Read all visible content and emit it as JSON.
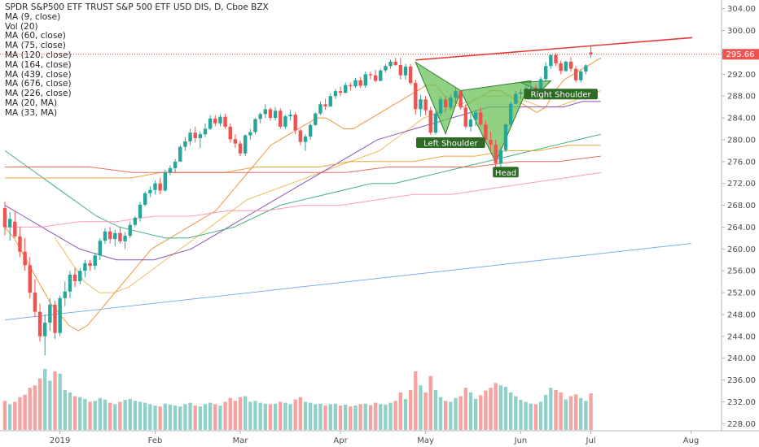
{
  "chart_data": {
    "type": "candlestick",
    "title": "SPDR S&P500 ETF TRUST S&P 500 ETF USD DIS, D, Cboe BZX",
    "legend": [
      {
        "label": "MA (9, close)"
      },
      {
        "label": "Vol (20)"
      },
      {
        "label": "MA (60, close)"
      },
      {
        "label": "MA (75, close)"
      },
      {
        "label": "MA (120, close)"
      },
      {
        "label": "MA (164, close)"
      },
      {
        "label": "MA (439, close)"
      },
      {
        "label": "MA (676, close)"
      },
      {
        "label": "MA (226, close)"
      },
      {
        "label": "MA (20, MA)"
      },
      {
        "label": "MA (33, MA)"
      }
    ],
    "y_ticks": [
      "304.00",
      "300.00",
      "296.00",
      "292.00",
      "288.00",
      "284.00",
      "280.00",
      "276.00",
      "272.00",
      "268.00",
      "264.00",
      "260.00",
      "256.00",
      "252.00",
      "248.00",
      "244.00",
      "240.00",
      "236.00",
      "232.00",
      "228.00"
    ],
    "x_ticks": [
      "2019",
      "Feb",
      "Mar",
      "Apr",
      "May",
      "Jun",
      "Jul",
      "Aug"
    ],
    "ylim": [
      227,
      305
    ],
    "last_price": "295.66",
    "colors": {
      "up": "#26a69a",
      "down": "#ef5350",
      "vol_up": "#8fd1c9",
      "vol_down": "#f5a3a1",
      "trendline": "#e53935",
      "pattern_fill": "#6cc25a",
      "pattern_stroke": "#2e7d32",
      "label_bg": "#2e6b24"
    },
    "candles": [
      [
        267.5,
        268.7,
        262.5,
        264.0,
        62
      ],
      [
        264.0,
        266.8,
        261.5,
        265.5,
        55
      ],
      [
        265.0,
        267.0,
        262.0,
        262.3,
        60
      ],
      [
        262.3,
        264.0,
        258.5,
        259.5,
        70
      ],
      [
        259.5,
        262.0,
        256.0,
        257.0,
        75
      ],
      [
        257.0,
        258.5,
        251.0,
        252.0,
        90
      ],
      [
        252.0,
        254.5,
        247.5,
        248.5,
        95
      ],
      [
        248.5,
        250.0,
        243.0,
        244.0,
        110
      ],
      [
        244.0,
        248.0,
        240.5,
        246.5,
        130
      ],
      [
        246.5,
        251.0,
        245.0,
        249.8,
        105
      ],
      [
        249.8,
        250.5,
        243.5,
        244.6,
        125
      ],
      [
        244.6,
        251.5,
        244.0,
        251.0,
        120
      ],
      [
        251.0,
        254.0,
        249.5,
        252.2,
        85
      ],
      [
        252.2,
        256.0,
        251.0,
        255.3,
        80
      ],
      [
        255.3,
        256.5,
        253.0,
        254.1,
        72
      ],
      [
        254.1,
        256.5,
        253.5,
        256.0,
        70
      ],
      [
        256.0,
        258.0,
        254.8,
        257.4,
        66
      ],
      [
        257.4,
        258.0,
        256.0,
        256.9,
        60
      ],
      [
        256.9,
        259.2,
        256.2,
        258.8,
        62
      ],
      [
        258.8,
        262.0,
        258.0,
        261.5,
        68
      ],
      [
        261.5,
        263.8,
        260.9,
        263.2,
        65
      ],
      [
        263.2,
        264.0,
        261.0,
        261.8,
        58
      ],
      [
        261.8,
        263.5,
        260.5,
        262.9,
        55
      ],
      [
        262.9,
        264.0,
        261.0,
        261.4,
        60
      ],
      [
        261.4,
        263.0,
        260.0,
        262.4,
        64
      ],
      [
        262.4,
        265.0,
        262.0,
        264.4,
        66
      ],
      [
        264.4,
        266.0,
        264.0,
        265.7,
        62
      ],
      [
        265.7,
        268.6,
        265.0,
        268.1,
        60
      ],
      [
        268.1,
        270.5,
        267.8,
        270.2,
        58
      ],
      [
        270.2,
        271.5,
        269.5,
        270.8,
        55
      ],
      [
        270.8,
        272.5,
        270.0,
        272.0,
        52
      ],
      [
        272.0,
        273.0,
        270.0,
        270.7,
        50
      ],
      [
        270.7,
        274.5,
        270.5,
        274.0,
        56
      ],
      [
        274.0,
        275.3,
        273.5,
        274.8,
        54
      ],
      [
        274.8,
        276.5,
        274.0,
        276.0,
        52
      ],
      [
        276.0,
        279.0,
        276.0,
        278.7,
        50
      ],
      [
        278.7,
        280.5,
        278.0,
        279.7,
        55
      ],
      [
        279.7,
        282.0,
        279.0,
        281.3,
        58
      ],
      [
        281.3,
        282.4,
        279.5,
        280.3,
        52
      ],
      [
        280.3,
        281.5,
        278.5,
        281.0,
        50
      ],
      [
        281.0,
        283.0,
        280.5,
        282.0,
        55
      ],
      [
        282.0,
        284.5,
        281.8,
        283.9,
        58
      ],
      [
        283.9,
        284.5,
        282.5,
        283.0,
        55
      ],
      [
        283.0,
        284.6,
        282.5,
        284.2,
        52
      ],
      [
        284.2,
        284.8,
        282.0,
        282.4,
        60
      ],
      [
        282.4,
        283.0,
        279.5,
        280.1,
        68
      ],
      [
        280.1,
        281.0,
        278.5,
        279.3,
        62
      ],
      [
        279.3,
        279.8,
        277.0,
        277.5,
        70
      ],
      [
        277.5,
        281.0,
        277.0,
        280.8,
        72
      ],
      [
        280.8,
        282.0,
        280.0,
        281.4,
        60
      ],
      [
        281.4,
        284.0,
        281.0,
        283.8,
        62
      ],
      [
        283.8,
        285.0,
        283.0,
        284.7,
        58
      ],
      [
        284.7,
        286.5,
        284.0,
        285.6,
        56
      ],
      [
        285.6,
        285.9,
        283.5,
        284.0,
        55
      ],
      [
        284.0,
        286.0,
        283.5,
        285.3,
        56
      ],
      [
        285.3,
        285.8,
        282.0,
        282.4,
        60
      ],
      [
        282.4,
        284.6,
        282.0,
        284.3,
        58
      ],
      [
        284.3,
        285.5,
        283.5,
        284.6,
        55
      ],
      [
        284.6,
        285.0,
        281.0,
        281.7,
        65
      ],
      [
        281.7,
        282.0,
        279.0,
        279.6,
        70
      ],
      [
        279.6,
        281.0,
        278.0,
        280.6,
        60
      ],
      [
        280.6,
        283.0,
        280.0,
        282.7,
        58
      ],
      [
        282.7,
        285.0,
        282.5,
        284.8,
        55
      ],
      [
        284.8,
        287.0,
        284.5,
        286.5,
        56
      ],
      [
        286.5,
        287.5,
        285.5,
        286.1,
        52
      ],
      [
        286.1,
        288.5,
        286.0,
        288.0,
        55
      ],
      [
        288.0,
        289.3,
        287.5,
        288.9,
        56
      ],
      [
        288.9,
        289.7,
        288.0,
        288.6,
        52
      ],
      [
        288.6,
        290.5,
        288.5,
        290.0,
        54
      ],
      [
        290.0,
        290.5,
        289.0,
        289.8,
        50
      ],
      [
        289.8,
        291.3,
        289.5,
        290.9,
        52
      ],
      [
        290.9,
        291.5,
        289.5,
        289.9,
        55
      ],
      [
        289.9,
        292.5,
        289.5,
        292.0,
        56
      ],
      [
        292.0,
        292.5,
        291.0,
        291.8,
        53
      ],
      [
        291.8,
        292.8,
        290.5,
        290.8,
        58
      ],
      [
        290.8,
        293.0,
        290.7,
        292.7,
        55
      ],
      [
        292.7,
        293.9,
        292.3,
        293.5,
        54
      ],
      [
        293.5,
        294.7,
        293.0,
        294.3,
        58
      ],
      [
        294.3,
        295.0,
        293.5,
        293.7,
        62
      ],
      [
        293.7,
        295.0,
        291.0,
        291.8,
        80
      ],
      [
        291.8,
        293.9,
        291.0,
        293.4,
        66
      ],
      [
        293.4,
        293.9,
        290.0,
        290.4,
        85
      ],
      [
        290.4,
        291.0,
        284.6,
        285.6,
        125
      ],
      [
        285.6,
        288.2,
        284.3,
        287.4,
        95
      ],
      [
        287.4,
        288.0,
        284.5,
        285.4,
        80
      ],
      [
        285.4,
        286.0,
        280.9,
        281.3,
        115
      ],
      [
        281.3,
        285.2,
        281.0,
        284.8,
        85
      ],
      [
        284.8,
        287.9,
        284.3,
        287.4,
        70
      ],
      [
        287.4,
        288.0,
        285.0,
        285.9,
        62
      ],
      [
        285.9,
        288.2,
        285.5,
        287.7,
        60
      ],
      [
        287.7,
        289.5,
        286.5,
        288.9,
        68
      ],
      [
        288.9,
        289.1,
        285.5,
        285.9,
        72
      ],
      [
        285.9,
        286.5,
        282.0,
        282.4,
        90
      ],
      [
        282.4,
        284.8,
        281.5,
        283.7,
        80
      ],
      [
        283.7,
        285.5,
        282.5,
        285.0,
        66
      ],
      [
        285.0,
        286.0,
        282.5,
        282.8,
        74
      ],
      [
        282.8,
        283.5,
        279.5,
        280.0,
        84
      ],
      [
        280.0,
        281.5,
        278.0,
        279.1,
        90
      ],
      [
        279.1,
        280.0,
        275.0,
        275.7,
        100
      ],
      [
        275.7,
        278.5,
        275.0,
        278.1,
        95
      ],
      [
        278.1,
        283.0,
        277.8,
        282.8,
        92
      ],
      [
        282.8,
        287.0,
        282.5,
        286.6,
        80
      ],
      [
        286.6,
        288.9,
        286.5,
        288.4,
        72
      ],
      [
        288.4,
        289.3,
        287.5,
        288.7,
        64
      ],
      [
        288.7,
        290.0,
        288.0,
        289.4,
        60
      ],
      [
        289.4,
        290.5,
        288.6,
        289.6,
        56
      ],
      [
        289.6,
        290.2,
        288.5,
        289.0,
        55
      ],
      [
        289.0,
        291.5,
        288.5,
        291.1,
        60
      ],
      [
        291.1,
        294.2,
        290.8,
        293.5,
        75
      ],
      [
        293.5,
        295.6,
        293.0,
        295.5,
        90
      ],
      [
        295.5,
        295.8,
        293.5,
        294.0,
        85
      ],
      [
        294.0,
        294.5,
        292.0,
        292.6,
        80
      ],
      [
        292.6,
        294.5,
        292.5,
        294.3,
        65
      ],
      [
        294.3,
        295.1,
        292.5,
        293.0,
        72
      ],
      [
        293.0,
        293.5,
        290.5,
        290.9,
        76
      ],
      [
        290.9,
        292.9,
        290.5,
        292.5,
        68
      ],
      [
        292.5,
        293.8,
        292.0,
        293.6,
        62
      ],
      [
        296.0,
        297.3,
        295.0,
        295.7,
        78
      ]
    ],
    "moving_averages": [
      {
        "color": "#f08a24",
        "values": [
          264,
          262,
          259,
          256,
          253,
          250,
          248,
          246,
          245,
          246,
          248,
          250,
          252,
          254,
          256,
          258,
          260,
          261,
          262,
          263,
          264,
          265,
          266,
          267,
          269,
          271,
          273,
          275,
          277,
          279,
          280,
          281,
          282,
          283,
          284,
          284,
          283,
          282,
          282,
          283,
          284,
          285,
          286,
          287,
          288,
          289,
          290,
          290,
          288,
          287,
          286,
          287,
          288,
          289,
          289,
          288,
          287,
          286,
          285,
          286,
          289,
          291,
          292,
          293,
          294,
          295
        ]
      },
      {
        "color": "#e8b84a",
        "values": [
          262,
          258,
          254,
          252,
          252,
          253,
          255,
          257,
          259,
          261,
          263,
          265,
          267,
          269,
          270,
          271,
          272,
          273,
          274,
          275,
          276,
          277,
          278,
          280,
          282,
          284,
          285,
          286,
          287,
          288,
          288,
          288,
          287,
          286,
          286,
          287,
          288,
          289
        ]
      },
      {
        "color": "#7b3fb0",
        "values": [
          268,
          266,
          264,
          262,
          260,
          259,
          258,
          258,
          258,
          259,
          260,
          262,
          264,
          266,
          268,
          270,
          272,
          274,
          276,
          278,
          280,
          281,
          282,
          283,
          284,
          285,
          286,
          286,
          286,
          286,
          286,
          287,
          287
        ]
      },
      {
        "color": "#2ba86c",
        "values": [
          278,
          275,
          272,
          269,
          266,
          264,
          263,
          262,
          262,
          263,
          264,
          266,
          268,
          269,
          270,
          271,
          272,
          272,
          273,
          274,
          275,
          276,
          277,
          278,
          279,
          280,
          281
        ]
      },
      {
        "color": "#e99a2a",
        "values": [
          273,
          273,
          273,
          273,
          273,
          274,
          274,
          274,
          275,
          275,
          275,
          276,
          276,
          276,
          277,
          277,
          278,
          278,
          279,
          279
        ]
      },
      {
        "color": "#e85d4a",
        "values": [
          275,
          275,
          275,
          274,
          274,
          274,
          274,
          274,
          274,
          275,
          275,
          275,
          276,
          276,
          277
        ]
      },
      {
        "color": "#ff8fb1",
        "values": [
          264,
          264,
          265,
          265,
          266,
          266,
          267,
          267,
          268,
          268,
          269,
          270,
          270,
          271,
          272,
          273,
          274
        ]
      },
      {
        "color": "#6ea8e8",
        "values": [
          247,
          248,
          249,
          250,
          251,
          252,
          253,
          254,
          255,
          256,
          257,
          258,
          259,
          260,
          261
        ]
      }
    ],
    "annotations": [
      {
        "label": "Left Shoulder"
      },
      {
        "label": "Head"
      },
      {
        "label": "Right Shoulder"
      }
    ]
  }
}
